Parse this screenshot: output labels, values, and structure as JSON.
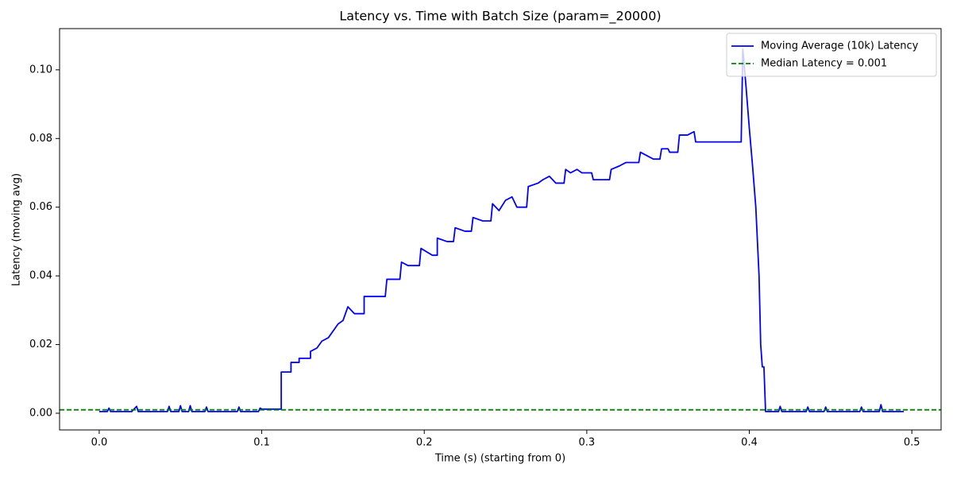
{
  "chart_data": {
    "type": "line",
    "title": "Latency vs. Time with Batch Size (param=_20000)",
    "xlabel": "Time (s) (starting from 0)",
    "ylabel": "Latency (moving avg)",
    "xlim": [
      -0.0244,
      0.518
    ],
    "ylim": [
      -0.00486,
      0.112
    ],
    "xticks": [
      {
        "value": 0,
        "label": "0.0"
      },
      0.1,
      0.2,
      0.3,
      0.4,
      0.5
    ],
    "yticks": [
      {
        "value": 0,
        "label": "0.00"
      },
      {
        "value": 0.02,
        "label": "0.02"
      },
      {
        "value": 0.04,
        "label": "0.04"
      },
      {
        "value": 0.06,
        "label": "0.06"
      },
      {
        "value": 0.08,
        "label": "0.08"
      },
      {
        "value": 0.1,
        "label": "0.10"
      }
    ],
    "legend": "upper right",
    "series": [
      {
        "name": "Moving Average (10k) Latency",
        "color": "#0000ff",
        "x": [
          0.0,
          0.005,
          0.006,
          0.007,
          0.02,
          0.023,
          0.024,
          0.042,
          0.043,
          0.044,
          0.049,
          0.05,
          0.051,
          0.055,
          0.056,
          0.057,
          0.065,
          0.066,
          0.067,
          0.085,
          0.086,
          0.087,
          0.098,
          0.099,
          0.1,
          0.112,
          0.112,
          0.118,
          0.118,
          0.123,
          0.123,
          0.13,
          0.13,
          0.134,
          0.137,
          0.141,
          0.144,
          0.147,
          0.15,
          0.153,
          0.157,
          0.163,
          0.163,
          0.171,
          0.176,
          0.177,
          0.181,
          0.185,
          0.186,
          0.19,
          0.197,
          0.198,
          0.205,
          0.208,
          0.208,
          0.214,
          0.218,
          0.219,
          0.225,
          0.229,
          0.23,
          0.236,
          0.241,
          0.242,
          0.246,
          0.25,
          0.254,
          0.257,
          0.263,
          0.264,
          0.27,
          0.273,
          0.277,
          0.281,
          0.286,
          0.287,
          0.29,
          0.294,
          0.297,
          0.303,
          0.304,
          0.314,
          0.315,
          0.32,
          0.324,
          0.332,
          0.333,
          0.341,
          0.345,
          0.346,
          0.35,
          0.351,
          0.356,
          0.357,
          0.362,
          0.366,
          0.367,
          0.395,
          0.396,
          0.398,
          0.4,
          0.402,
          0.404,
          0.406,
          0.407,
          0.408,
          0.409,
          0.41,
          0.418,
          0.419,
          0.42,
          0.435,
          0.436,
          0.437,
          0.446,
          0.447,
          0.448,
          0.468,
          0.469,
          0.47,
          0.48,
          0.481,
          0.482,
          0.495
        ],
        "y": [
          0.0005,
          0.0005,
          0.0015,
          0.0005,
          0.0005,
          0.002,
          0.0005,
          0.0005,
          0.002,
          0.0005,
          0.0005,
          0.0022,
          0.0005,
          0.0005,
          0.0022,
          0.0005,
          0.0005,
          0.0018,
          0.0005,
          0.0005,
          0.0018,
          0.0005,
          0.0005,
          0.0015,
          0.0012,
          0.0012,
          0.012,
          0.012,
          0.0148,
          0.0148,
          0.016,
          0.016,
          0.018,
          0.019,
          0.021,
          0.022,
          0.024,
          0.026,
          0.027,
          0.031,
          0.029,
          0.029,
          0.034,
          0.034,
          0.034,
          0.039,
          0.039,
          0.039,
          0.044,
          0.043,
          0.043,
          0.048,
          0.046,
          0.046,
          0.051,
          0.05,
          0.05,
          0.054,
          0.053,
          0.053,
          0.057,
          0.056,
          0.056,
          0.061,
          0.059,
          0.062,
          0.063,
          0.06,
          0.06,
          0.066,
          0.067,
          0.068,
          0.069,
          0.067,
          0.067,
          0.071,
          0.07,
          0.071,
          0.07,
          0.07,
          0.068,
          0.068,
          0.071,
          0.072,
          0.073,
          0.073,
          0.076,
          0.074,
          0.074,
          0.077,
          0.077,
          0.076,
          0.076,
          0.081,
          0.081,
          0.082,
          0.079,
          0.079,
          0.106,
          0.095,
          0.083,
          0.072,
          0.06,
          0.04,
          0.02,
          0.0135,
          0.0135,
          0.0005,
          0.0005,
          0.002,
          0.0005,
          0.0005,
          0.0018,
          0.0005,
          0.0005,
          0.0018,
          0.0005,
          0.0005,
          0.0018,
          0.0005,
          0.0005,
          0.0025,
          0.0005,
          0.0005
        ]
      }
    ],
    "hlines": [
      {
        "name": "Median Latency = 0.001",
        "value": 0.001,
        "color": "#008000",
        "style": "dashed"
      }
    ]
  }
}
